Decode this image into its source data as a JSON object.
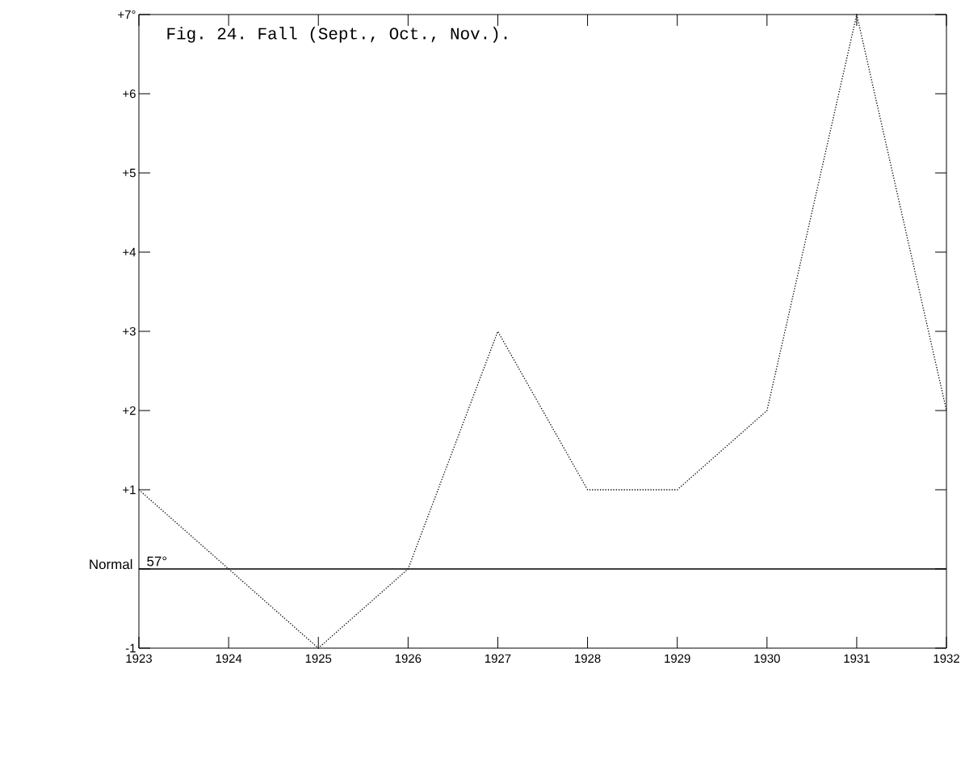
{
  "chart_data": {
    "type": "line",
    "title": "Fig. 24. Fall (Sept., Oct., Nov.).",
    "x": [
      1923,
      1924,
      1925,
      1926,
      1927,
      1928,
      1929,
      1930,
      1931,
      1932
    ],
    "values": [
      1,
      0,
      -1,
      0,
      3,
      1,
      1,
      2,
      7,
      2
    ],
    "color": "#000000",
    "line_style": "dotted",
    "marker": "none",
    "grid": false,
    "xlim": [
      1923,
      1932
    ],
    "ylim": [
      -1,
      7
    ],
    "xticks": [
      1923,
      1924,
      1925,
      1926,
      1927,
      1928,
      1929,
      1930,
      1931,
      1932
    ],
    "yticks": [
      -1,
      {
        "value": 0,
        "label": null
      },
      {
        "value": 1,
        "label": "+1"
      },
      {
        "value": 2,
        "label": "+2"
      },
      {
        "value": 3,
        "label": "+3"
      },
      {
        "value": 4,
        "label": "+4"
      },
      {
        "value": 5,
        "label": "+5"
      },
      {
        "value": 6,
        "label": "+6"
      },
      {
        "value": 7,
        "label": "+7°"
      }
    ],
    "ref_lines": [
      {
        "axis": "y",
        "value": 0,
        "label": "Normal",
        "color": "#000000",
        "line_style": "solid"
      }
    ],
    "annotations": [
      {
        "text": "57°",
        "x": 1923,
        "y": 0
      }
    ]
  }
}
